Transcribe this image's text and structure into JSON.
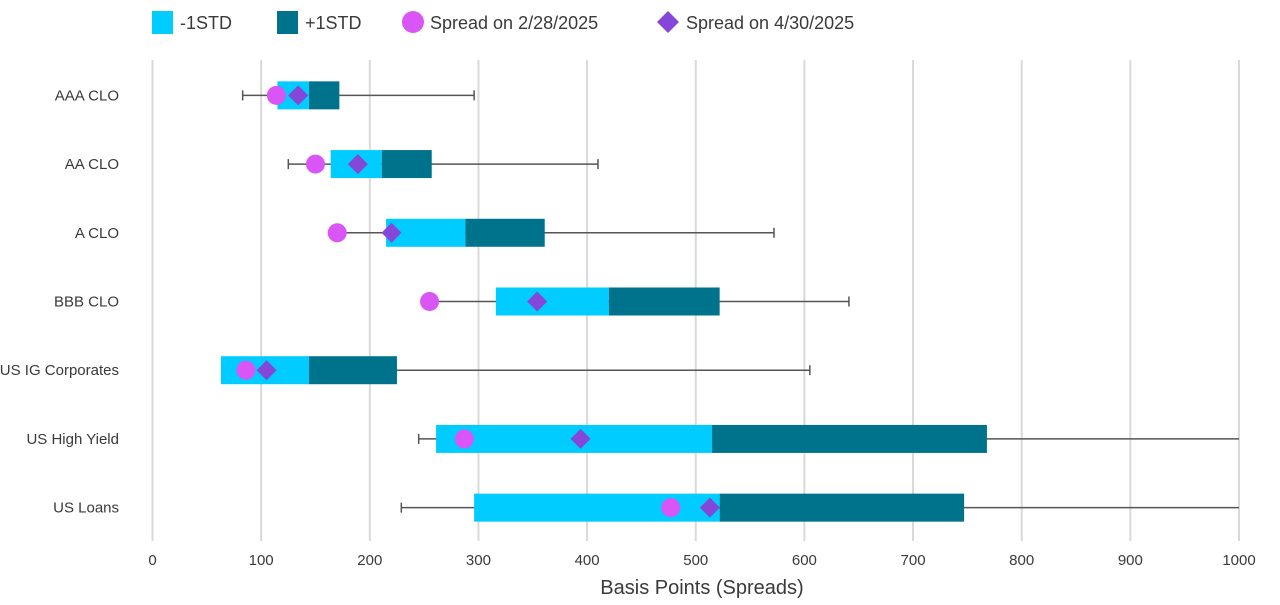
{
  "chart_data": {
    "type": "bar",
    "subtype": "horizontal-stacked-range-with-whiskers-and-markers",
    "title": "",
    "xlabel": "Basis Points (Spreads)",
    "ylabel": "",
    "xlim": [
      0,
      1000
    ],
    "xticks": [
      0,
      100,
      200,
      300,
      400,
      500,
      600,
      700,
      800,
      900,
      1000
    ],
    "grid": true,
    "legend_position": "top",
    "legend": [
      {
        "label": "-1STD",
        "shape": "square",
        "color": "#00CCFF"
      },
      {
        "label": "+1STD",
        "shape": "square",
        "color": "#00738C"
      },
      {
        "label": "Spread on 2/28/2025",
        "shape": "circle",
        "color": "#D955F5"
      },
      {
        "label": "Spread on 4/30/2025",
        "shape": "diamond",
        "color": "#8447D9"
      }
    ],
    "categories": [
      "AAA CLO",
      "AA CLO",
      "A CLO",
      "BBB CLO",
      "US IG Corporates",
      "US High Yield",
      "US Loans"
    ],
    "series": [
      {
        "name": "-1STD",
        "low": [
          115,
          164,
          215,
          316,
          63,
          261,
          296
        ],
        "high": [
          144,
          211,
          288,
          420,
          144,
          515,
          522
        ]
      },
      {
        "name": "+1STD",
        "low": [
          144,
          211,
          288,
          420,
          144,
          515,
          522
        ],
        "high": [
          172,
          257,
          361,
          522,
          225,
          768,
          747
        ]
      },
      {
        "name": "Range (min/max)",
        "min": [
          83,
          125,
          170,
          255,
          77,
          245,
          229
        ],
        "max": [
          296,
          410,
          572,
          641,
          605,
          1000,
          1000
        ]
      },
      {
        "name": "Spread on 2/28/2025",
        "values": [
          114,
          150,
          170,
          255,
          86,
          287,
          477
        ]
      },
      {
        "name": "Spread on 4/30/2025",
        "values": [
          134,
          189,
          220,
          354,
          105,
          394,
          513
        ]
      }
    ]
  }
}
